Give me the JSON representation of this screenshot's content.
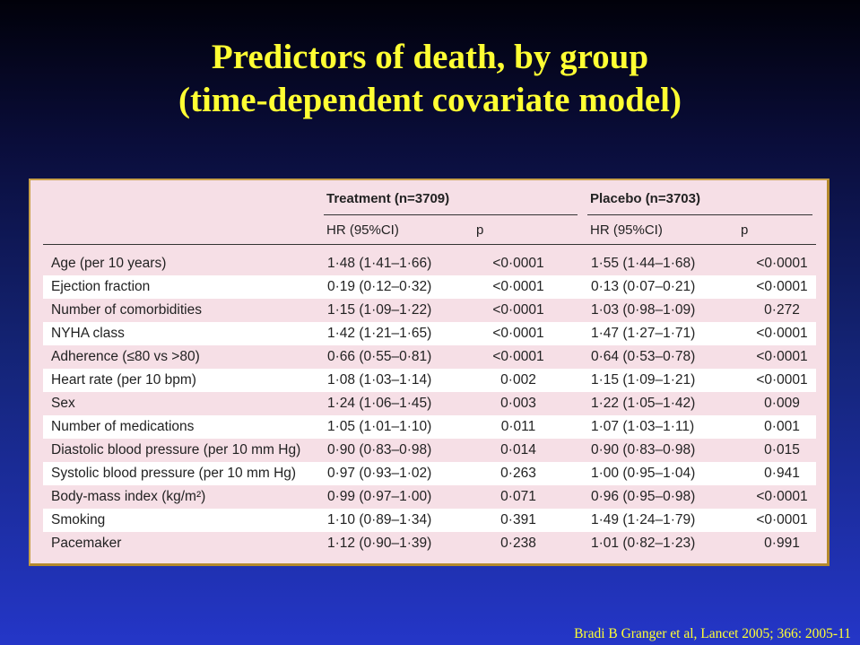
{
  "title": {
    "line1": "Predictors of death, by group",
    "line2": "(time-dependent covariate model)"
  },
  "table": {
    "groups": {
      "treatment": "Treatment (n=3709)",
      "placebo": "Placebo (n=3703)"
    },
    "subheaders": {
      "hr": "HR (95%CI)",
      "p": "p"
    },
    "rows": [
      {
        "label": "Age (per 10 years)",
        "t_hr": "1·48 (1·41–1·66)",
        "t_p": "<0·0001",
        "p_hr": "1·55 (1·44–1·68)",
        "p_p": "<0·0001"
      },
      {
        "label": "Ejection fraction",
        "t_hr": "0·19 (0·12–0·32)",
        "t_p": "<0·0001",
        "p_hr": "0·13 (0·07–0·21)",
        "p_p": "<0·0001"
      },
      {
        "label": "Number of comorbidities",
        "t_hr": "1·15 (1·09–1·22)",
        "t_p": "<0·0001",
        "p_hr": "1·03 (0·98–1·09)",
        "p_p": "0·272"
      },
      {
        "label": "NYHA class",
        "t_hr": "1·42 (1·21–1·65)",
        "t_p": "<0·0001",
        "p_hr": "1·47 (1·27–1·71)",
        "p_p": "<0·0001"
      },
      {
        "label": "Adherence (≤80 vs >80)",
        "t_hr": "0·66 (0·55–0·81)",
        "t_p": "<0·0001",
        "p_hr": "0·64 (0·53–0·78)",
        "p_p": "<0·0001"
      },
      {
        "label": "Heart rate (per 10 bpm)",
        "t_hr": "1·08 (1·03–1·14)",
        "t_p": "0·002",
        "p_hr": "1·15 (1·09–1·21)",
        "p_p": "<0·0001"
      },
      {
        "label": "Sex",
        "t_hr": "1·24 (1·06–1·45)",
        "t_p": "0·003",
        "p_hr": "1·22 (1·05–1·42)",
        "p_p": "0·009"
      },
      {
        "label": "Number of medications",
        "t_hr": "1·05 (1·01–1·10)",
        "t_p": "0·011",
        "p_hr": "1·07 (1·03–1·11)",
        "p_p": "0·001"
      },
      {
        "label": "Diastolic blood pressure (per 10 mm Hg)",
        "t_hr": "0·90 (0·83–0·98)",
        "t_p": "0·014",
        "p_hr": "0·90 (0·83–0·98)",
        "p_p": "0·015"
      },
      {
        "label": "Systolic blood pressure (per 10 mm Hg)",
        "t_hr": "0·97 (0·93–1·02)",
        "t_p": "0·263",
        "p_hr": "1·00 (0·95–1·04)",
        "p_p": "0·941"
      },
      {
        "label": "Body-mass index (kg/m²)",
        "t_hr": "0·99 (0·97–1·00)",
        "t_p": "0·071",
        "p_hr": "0·96 (0·95–0·98)",
        "p_p": "<0·0001"
      },
      {
        "label": "Smoking",
        "t_hr": "1·10 (0·89–1·34)",
        "t_p": "0·391",
        "p_hr": "1·49 (1·24–1·79)",
        "p_p": "<0·0001"
      },
      {
        "label": "Pacemaker",
        "t_hr": "1·12 (0·90–1·39)",
        "t_p": "0·238",
        "p_hr": "1·01 (0·82–1·23)",
        "p_p": "0·991"
      }
    ]
  },
  "citation": "Bradi B Granger et al, Lancet 2005; 366: 2005-11"
}
